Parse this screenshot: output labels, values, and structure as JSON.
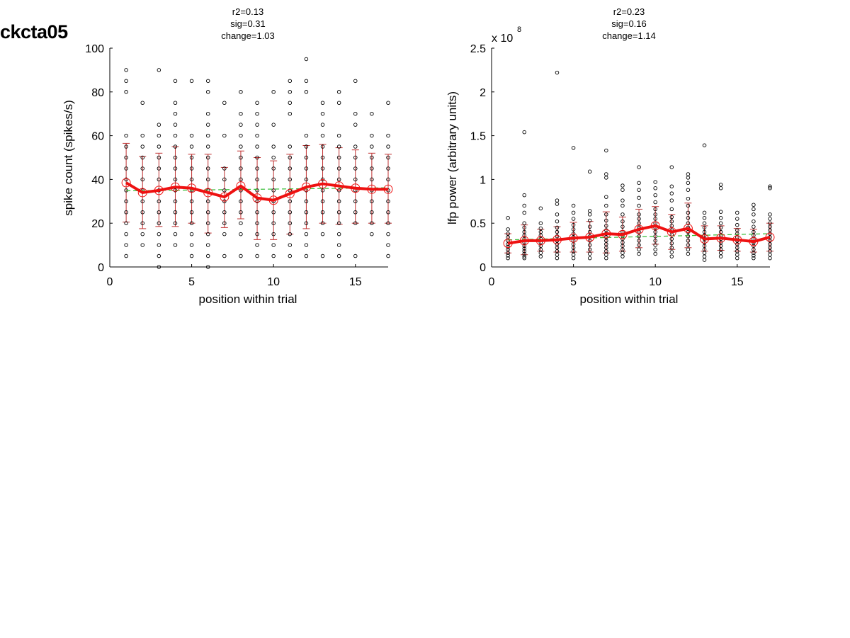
{
  "figure": {
    "title": "ckcta05"
  },
  "chart_data": [
    {
      "type": "scatter",
      "stats": [
        "r2=0.13",
        "sig=0.31",
        "change=1.03"
      ],
      "xlabel": "position within trial",
      "ylabel": "spike count (spikes/s)",
      "xlim": [
        0,
        17
      ],
      "ylim": [
        0,
        100
      ],
      "xticks": [
        0,
        5,
        10,
        15
      ],
      "yticks": [
        0,
        20,
        40,
        60,
        80,
        100
      ],
      "ytick_labels": [
        "0",
        "20",
        "40",
        "60",
        "80",
        "100"
      ],
      "exponent_label": "",
      "exponent_power": "",
      "grid": false,
      "points": [
        {
          "x": 1,
          "ys": [
            5,
            10,
            15,
            20,
            25,
            30,
            35,
            40,
            45,
            50,
            55,
            60,
            80,
            85,
            90
          ]
        },
        {
          "x": 2,
          "ys": [
            10,
            15,
            20,
            25,
            30,
            35,
            40,
            45,
            50,
            55,
            60,
            75
          ]
        },
        {
          "x": 3,
          "ys": [
            0,
            5,
            10,
            15,
            20,
            25,
            30,
            35,
            40,
            45,
            50,
            55,
            60,
            65,
            90
          ]
        },
        {
          "x": 4,
          "ys": [
            10,
            15,
            20,
            25,
            30,
            35,
            40,
            45,
            50,
            55,
            60,
            65,
            70,
            75,
            85
          ]
        },
        {
          "x": 5,
          "ys": [
            5,
            10,
            15,
            20,
            25,
            30,
            35,
            40,
            45,
            50,
            55,
            60,
            85
          ]
        },
        {
          "x": 6,
          "ys": [
            0,
            5,
            10,
            15,
            20,
            25,
            30,
            35,
            40,
            45,
            50,
            55,
            60,
            65,
            70,
            80,
            85
          ]
        },
        {
          "x": 7,
          "ys": [
            5,
            15,
            20,
            25,
            30,
            35,
            40,
            45,
            60,
            75
          ]
        },
        {
          "x": 8,
          "ys": [
            5,
            15,
            20,
            25,
            30,
            35,
            40,
            45,
            50,
            55,
            60,
            65,
            70,
            80
          ]
        },
        {
          "x": 9,
          "ys": [
            5,
            10,
            15,
            20,
            25,
            30,
            35,
            40,
            45,
            50,
            55,
            60,
            65,
            70,
            75
          ]
        },
        {
          "x": 10,
          "ys": [
            5,
            10,
            15,
            20,
            25,
            30,
            35,
            40,
            45,
            50,
            55,
            65,
            80
          ]
        },
        {
          "x": 11,
          "ys": [
            5,
            10,
            15,
            20,
            25,
            30,
            35,
            40,
            45,
            50,
            55,
            70,
            75,
            80,
            85
          ]
        },
        {
          "x": 12,
          "ys": [
            5,
            10,
            15,
            20,
            25,
            30,
            35,
            40,
            45,
            50,
            55,
            60,
            80,
            85,
            95
          ]
        },
        {
          "x": 13,
          "ys": [
            5,
            15,
            20,
            25,
            30,
            35,
            40,
            45,
            50,
            55,
            60,
            65,
            70,
            75
          ]
        },
        {
          "x": 14,
          "ys": [
            5,
            10,
            15,
            20,
            25,
            30,
            35,
            40,
            45,
            50,
            55,
            60,
            75,
            80
          ]
        },
        {
          "x": 15,
          "ys": [
            5,
            20,
            25,
            30,
            35,
            40,
            45,
            50,
            55,
            65,
            70,
            85
          ]
        },
        {
          "x": 16,
          "ys": [
            15,
            20,
            25,
            30,
            35,
            40,
            45,
            50,
            55,
            60,
            70
          ]
        },
        {
          "x": 17,
          "ys": [
            5,
            10,
            15,
            20,
            25,
            30,
            35,
            40,
            45,
            50,
            55,
            60,
            75
          ]
        }
      ],
      "series": [
        {
          "type": "mean_line",
          "values": [
            38.5,
            34,
            35,
            36.5,
            36,
            34,
            32,
            37,
            31.5,
            30.5,
            33.5,
            36.5,
            38,
            37,
            36,
            35.5,
            35.5
          ]
        },
        {
          "type": "error_low",
          "values": [
            20.5,
            17.5,
            18.5,
            18.5,
            20,
            15.5,
            18,
            22,
            12.5,
            12.5,
            15,
            17.5,
            20,
            19.5,
            20,
            20,
            20
          ]
        },
        {
          "type": "error_high",
          "values": [
            56.5,
            50.5,
            52,
            55,
            51.5,
            51.5,
            45.5,
            53,
            50,
            48.5,
            51.5,
            55.5,
            56,
            54.5,
            53.5,
            52,
            51.5
          ]
        },
        {
          "type": "trend_line",
          "values": [
            34.8,
            36.2
          ]
        }
      ],
      "colors": {
        "mean": "#ee1111",
        "error": "#c03030",
        "trend": "#33bb33",
        "points": "#000000"
      }
    },
    {
      "type": "scatter",
      "stats": [
        "r2=0.23",
        "sig=0.16",
        "change=1.14"
      ],
      "xlabel": "position within trial",
      "ylabel": "lfp power (arbitrary units)",
      "xlim": [
        0,
        17
      ],
      "ylim": [
        0,
        2.5
      ],
      "xticks": [
        0,
        5,
        10,
        15
      ],
      "yticks": [
        0,
        0.5,
        1,
        1.5,
        2,
        2.5
      ],
      "ytick_labels": [
        "0",
        "0.5",
        "1",
        "1.5",
        "2",
        "2.5"
      ],
      "exponent_label": "x 10",
      "exponent_power": "8",
      "grid": false,
      "points": [
        {
          "x": 1,
          "ys": [
            0.1,
            0.13,
            0.16,
            0.2,
            0.23,
            0.26,
            0.3,
            0.34,
            0.38,
            0.43,
            0.56
          ]
        },
        {
          "x": 2,
          "ys": [
            0.1,
            0.12,
            0.15,
            0.18,
            0.21,
            0.24,
            0.28,
            0.32,
            0.36,
            0.4,
            0.45,
            0.5,
            0.62,
            0.7,
            0.82,
            1.54
          ]
        },
        {
          "x": 3,
          "ys": [
            0.12,
            0.16,
            0.2,
            0.24,
            0.28,
            0.32,
            0.36,
            0.4,
            0.44,
            0.5,
            0.67
          ]
        },
        {
          "x": 4,
          "ys": [
            0.1,
            0.14,
            0.18,
            0.22,
            0.26,
            0.3,
            0.35,
            0.4,
            0.45,
            0.52,
            0.6,
            0.72,
            0.76,
            2.22
          ]
        },
        {
          "x": 5,
          "ys": [
            0.1,
            0.14,
            0.18,
            0.22,
            0.26,
            0.3,
            0.34,
            0.38,
            0.43,
            0.48,
            0.55,
            0.62,
            0.7,
            1.36
          ]
        },
        {
          "x": 6,
          "ys": [
            0.1,
            0.15,
            0.2,
            0.25,
            0.3,
            0.35,
            0.4,
            0.46,
            0.53,
            0.6,
            0.64,
            1.09
          ]
        },
        {
          "x": 7,
          "ys": [
            0.1,
            0.14,
            0.18,
            0.22,
            0.26,
            0.3,
            0.34,
            0.38,
            0.42,
            0.47,
            0.53,
            0.6,
            0.7,
            0.8,
            1.02,
            1.06,
            1.33
          ]
        },
        {
          "x": 8,
          "ys": [
            0.12,
            0.16,
            0.2,
            0.24,
            0.28,
            0.32,
            0.36,
            0.4,
            0.46,
            0.52,
            0.6,
            0.7,
            0.76,
            0.88,
            0.93
          ]
        },
        {
          "x": 9,
          "ys": [
            0.15,
            0.2,
            0.25,
            0.3,
            0.35,
            0.4,
            0.45,
            0.5,
            0.55,
            0.6,
            0.7,
            0.79,
            0.88,
            0.96,
            1.14
          ]
        },
        {
          "x": 10,
          "ys": [
            0.15,
            0.2,
            0.25,
            0.3,
            0.35,
            0.4,
            0.45,
            0.5,
            0.55,
            0.6,
            0.66,
            0.74,
            0.82,
            0.9,
            0.97
          ]
        },
        {
          "x": 11,
          "ys": [
            0.12,
            0.17,
            0.22,
            0.27,
            0.32,
            0.37,
            0.42,
            0.47,
            0.52,
            0.57,
            0.66,
            0.76,
            0.84,
            0.92,
            1.14
          ]
        },
        {
          "x": 12,
          "ys": [
            0.15,
            0.2,
            0.25,
            0.3,
            0.35,
            0.4,
            0.45,
            0.5,
            0.56,
            0.62,
            0.7,
            0.78,
            0.88,
            0.96,
            1.02,
            1.06
          ]
        },
        {
          "x": 13,
          "ys": [
            0.08,
            0.12,
            0.16,
            0.2,
            0.24,
            0.28,
            0.32,
            0.36,
            0.4,
            0.45,
            0.5,
            0.56,
            0.62,
            1.39
          ]
        },
        {
          "x": 14,
          "ys": [
            0.12,
            0.16,
            0.2,
            0.24,
            0.28,
            0.32,
            0.36,
            0.4,
            0.45,
            0.5,
            0.56,
            0.63,
            0.9,
            0.94
          ]
        },
        {
          "x": 15,
          "ys": [
            0.1,
            0.14,
            0.18,
            0.22,
            0.26,
            0.3,
            0.34,
            0.38,
            0.42,
            0.48,
            0.55,
            0.62
          ]
        },
        {
          "x": 16,
          "ys": [
            0.1,
            0.13,
            0.16,
            0.2,
            0.24,
            0.28,
            0.32,
            0.36,
            0.4,
            0.46,
            0.52,
            0.6,
            0.66,
            0.71
          ]
        },
        {
          "x": 17,
          "ys": [
            0.1,
            0.14,
            0.18,
            0.22,
            0.26,
            0.3,
            0.34,
            0.38,
            0.42,
            0.46,
            0.5,
            0.55,
            0.6,
            0.9,
            0.92
          ]
        }
      ],
      "series": [
        {
          "type": "mean_line",
          "values": [
            0.27,
            0.3,
            0.3,
            0.31,
            0.33,
            0.34,
            0.38,
            0.37,
            0.43,
            0.47,
            0.4,
            0.44,
            0.32,
            0.33,
            0.31,
            0.29,
            0.34
          ]
        },
        {
          "type": "error_low",
          "values": [
            0.16,
            0.14,
            0.18,
            0.17,
            0.17,
            0.17,
            0.16,
            0.18,
            0.22,
            0.26,
            0.2,
            0.22,
            0.18,
            0.19,
            0.18,
            0.17,
            0.18
          ]
        },
        {
          "type": "error_high",
          "values": [
            0.38,
            0.48,
            0.43,
            0.46,
            0.51,
            0.52,
            0.63,
            0.57,
            0.66,
            0.69,
            0.6,
            0.73,
            0.47,
            0.47,
            0.44,
            0.43,
            0.5
          ]
        },
        {
          "type": "trend_line",
          "values": [
            0.31,
            0.38
          ]
        }
      ],
      "colors": {
        "mean": "#ee1111",
        "error": "#c03030",
        "trend": "#33bb33",
        "points": "#000000"
      }
    }
  ]
}
